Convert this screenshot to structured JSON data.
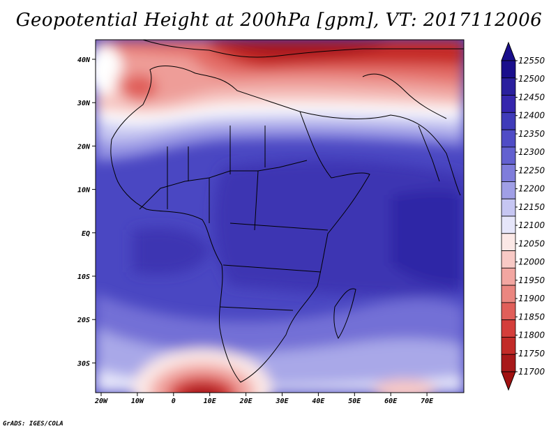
{
  "title": "Geopotential Height at 200hPa [gpm], VT: 2017112006",
  "credit": "GrADS: IGES/COLA",
  "map": {
    "lon_ticks": [
      "20W",
      "10W",
      "0",
      "10E",
      "20E",
      "30E",
      "40E",
      "50E",
      "60E",
      "70E"
    ],
    "lat_ticks": [
      "40N",
      "30N",
      "20N",
      "10N",
      "EQ",
      "10S",
      "20S",
      "30S"
    ]
  },
  "colorbar": {
    "labels": [
      "12550",
      "12500",
      "12450",
      "12400",
      "12350",
      "12300",
      "12250",
      "12200",
      "12150",
      "12100",
      "12050",
      "12000",
      "11950",
      "11900",
      "11850",
      "11800",
      "11750",
      "11700"
    ],
    "colors": [
      "#1a0f8c",
      "#2a1f9e",
      "#3526ad",
      "#3f3bb9",
      "#4f4cc6",
      "#6361d0",
      "#7f7ddb",
      "#a09fe6",
      "#c6c6f2",
      "#e6e6fa",
      "#fbe8e6",
      "#f8c9c5",
      "#f2a6a1",
      "#ea8680",
      "#e05f5a",
      "#d43e3b",
      "#c22b28",
      "#a8191a"
    ],
    "min_arrow_color": "#a01010",
    "max_arrow_color": "#1a0f8c"
  }
}
